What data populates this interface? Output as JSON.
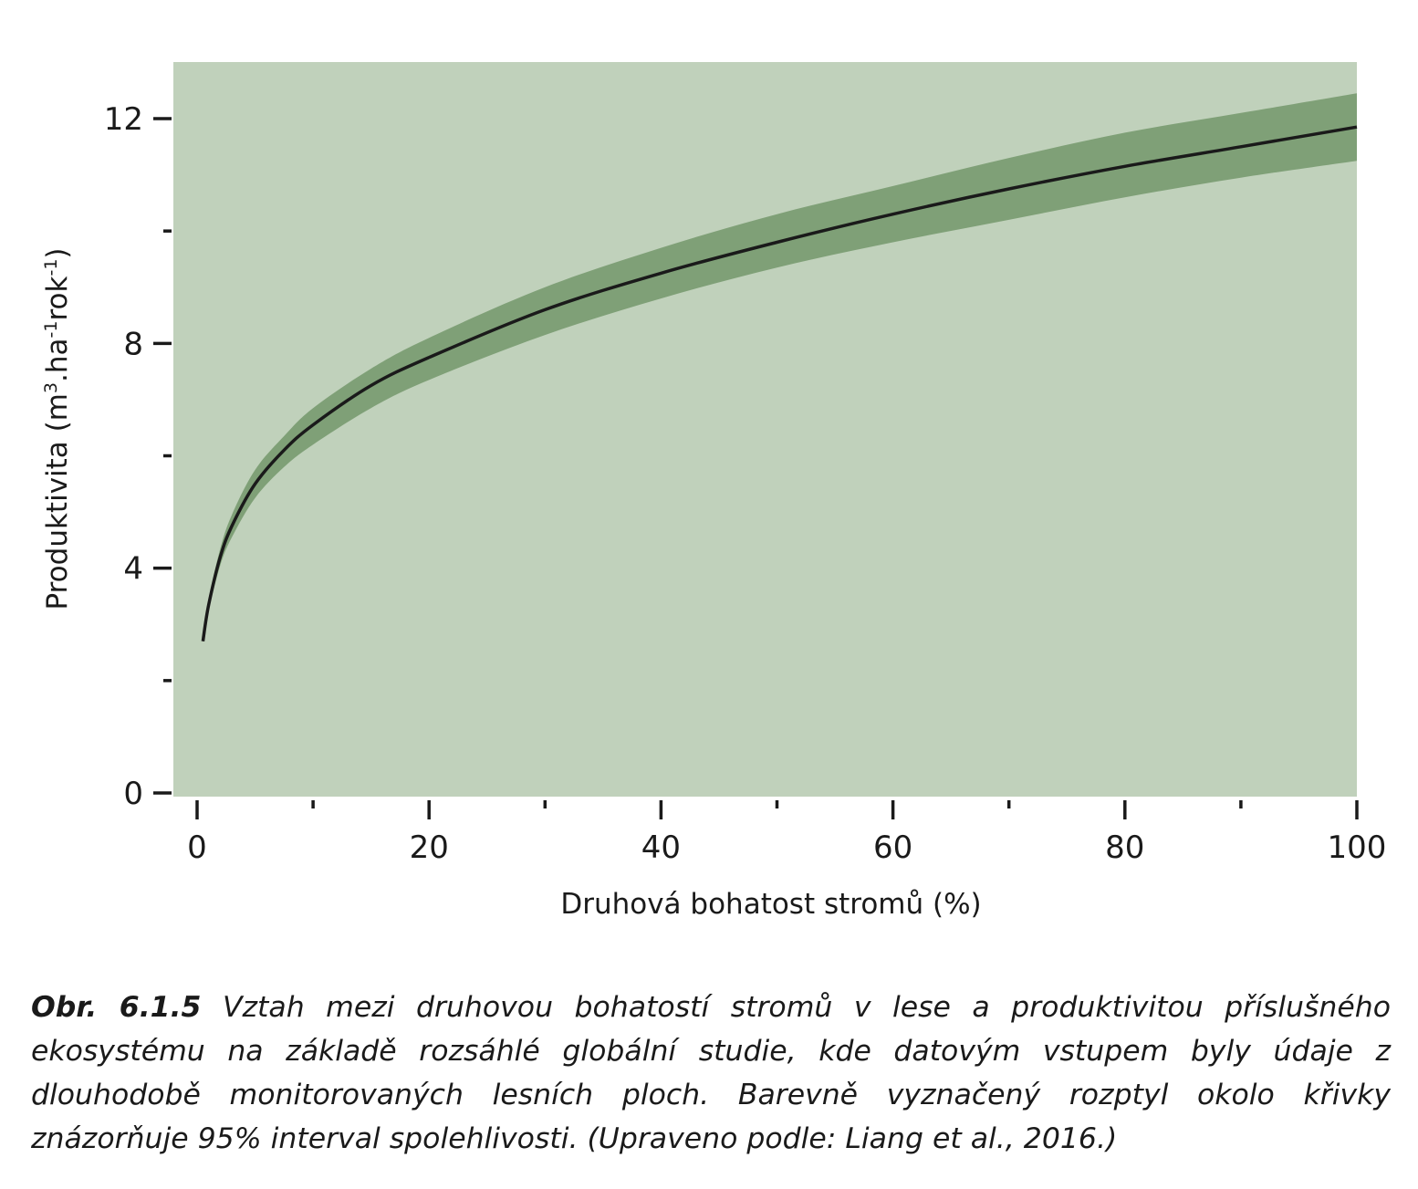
{
  "chart_data": {
    "type": "line",
    "title": "",
    "xlabel": "Druhová bohatost stromů (%)",
    "ylabel": {
      "parts": [
        "Produktivita (m",
        "3",
        ".ha",
        "-1",
        "rok",
        "-1",
        ")"
      ]
    },
    "xlim": [
      -2,
      100
    ],
    "ylim": [
      0,
      13
    ],
    "x_major_ticks": [
      0,
      20,
      40,
      60,
      80,
      100
    ],
    "x_minor_ticks": [
      10,
      30,
      50,
      70,
      90
    ],
    "x_tick_labels": [
      "0",
      "20",
      "40",
      "60",
      "80",
      "100"
    ],
    "y_major_ticks": [
      0,
      4,
      8,
      12
    ],
    "y_minor_ticks": [
      2,
      6,
      10
    ],
    "y_tick_labels": [
      "0",
      "4",
      "8",
      "12"
    ],
    "grid": false,
    "legend": "none",
    "colors": {
      "background": "#c0d1bb",
      "band": "#7fa077",
      "line": "#1a1a1a"
    },
    "series": [
      {
        "x": [
          0.5,
          1,
          2,
          3,
          5,
          7.5,
          10,
          15,
          20,
          30,
          40,
          50,
          60,
          70,
          80,
          90,
          100
        ],
        "y": [
          2.7,
          3.35,
          4.2,
          4.75,
          5.5,
          6.1,
          6.55,
          7.25,
          7.75,
          8.6,
          9.25,
          9.8,
          10.3,
          10.75,
          11.15,
          11.5,
          11.85
        ],
        "lower": [
          2.7,
          3.25,
          4.05,
          4.55,
          5.25,
          5.8,
          6.2,
          6.85,
          7.35,
          8.15,
          8.8,
          9.35,
          9.8,
          10.2,
          10.6,
          10.95,
          11.25
        ],
        "upper": [
          2.7,
          3.45,
          4.35,
          4.95,
          5.75,
          6.35,
          6.85,
          7.55,
          8.1,
          9.0,
          9.7,
          10.3,
          10.8,
          11.3,
          11.75,
          12.1,
          12.45
        ]
      }
    ]
  },
  "caption": {
    "figure_number": "Obr. 6.1.5",
    "text": " Vztah mezi druhovou bohatostí stromů v lese a produktivitou příslušného ekosystému na základě rozsáhlé globální studie, kde datovým vstupem byly údaje z dlouhodobě monitorovaných lesních ploch. Barevně vyznačený rozptyl okolo křivky znázorňuje 95% interval spolehlivosti. (Upraveno podle: Liang et al., 2016.)"
  }
}
